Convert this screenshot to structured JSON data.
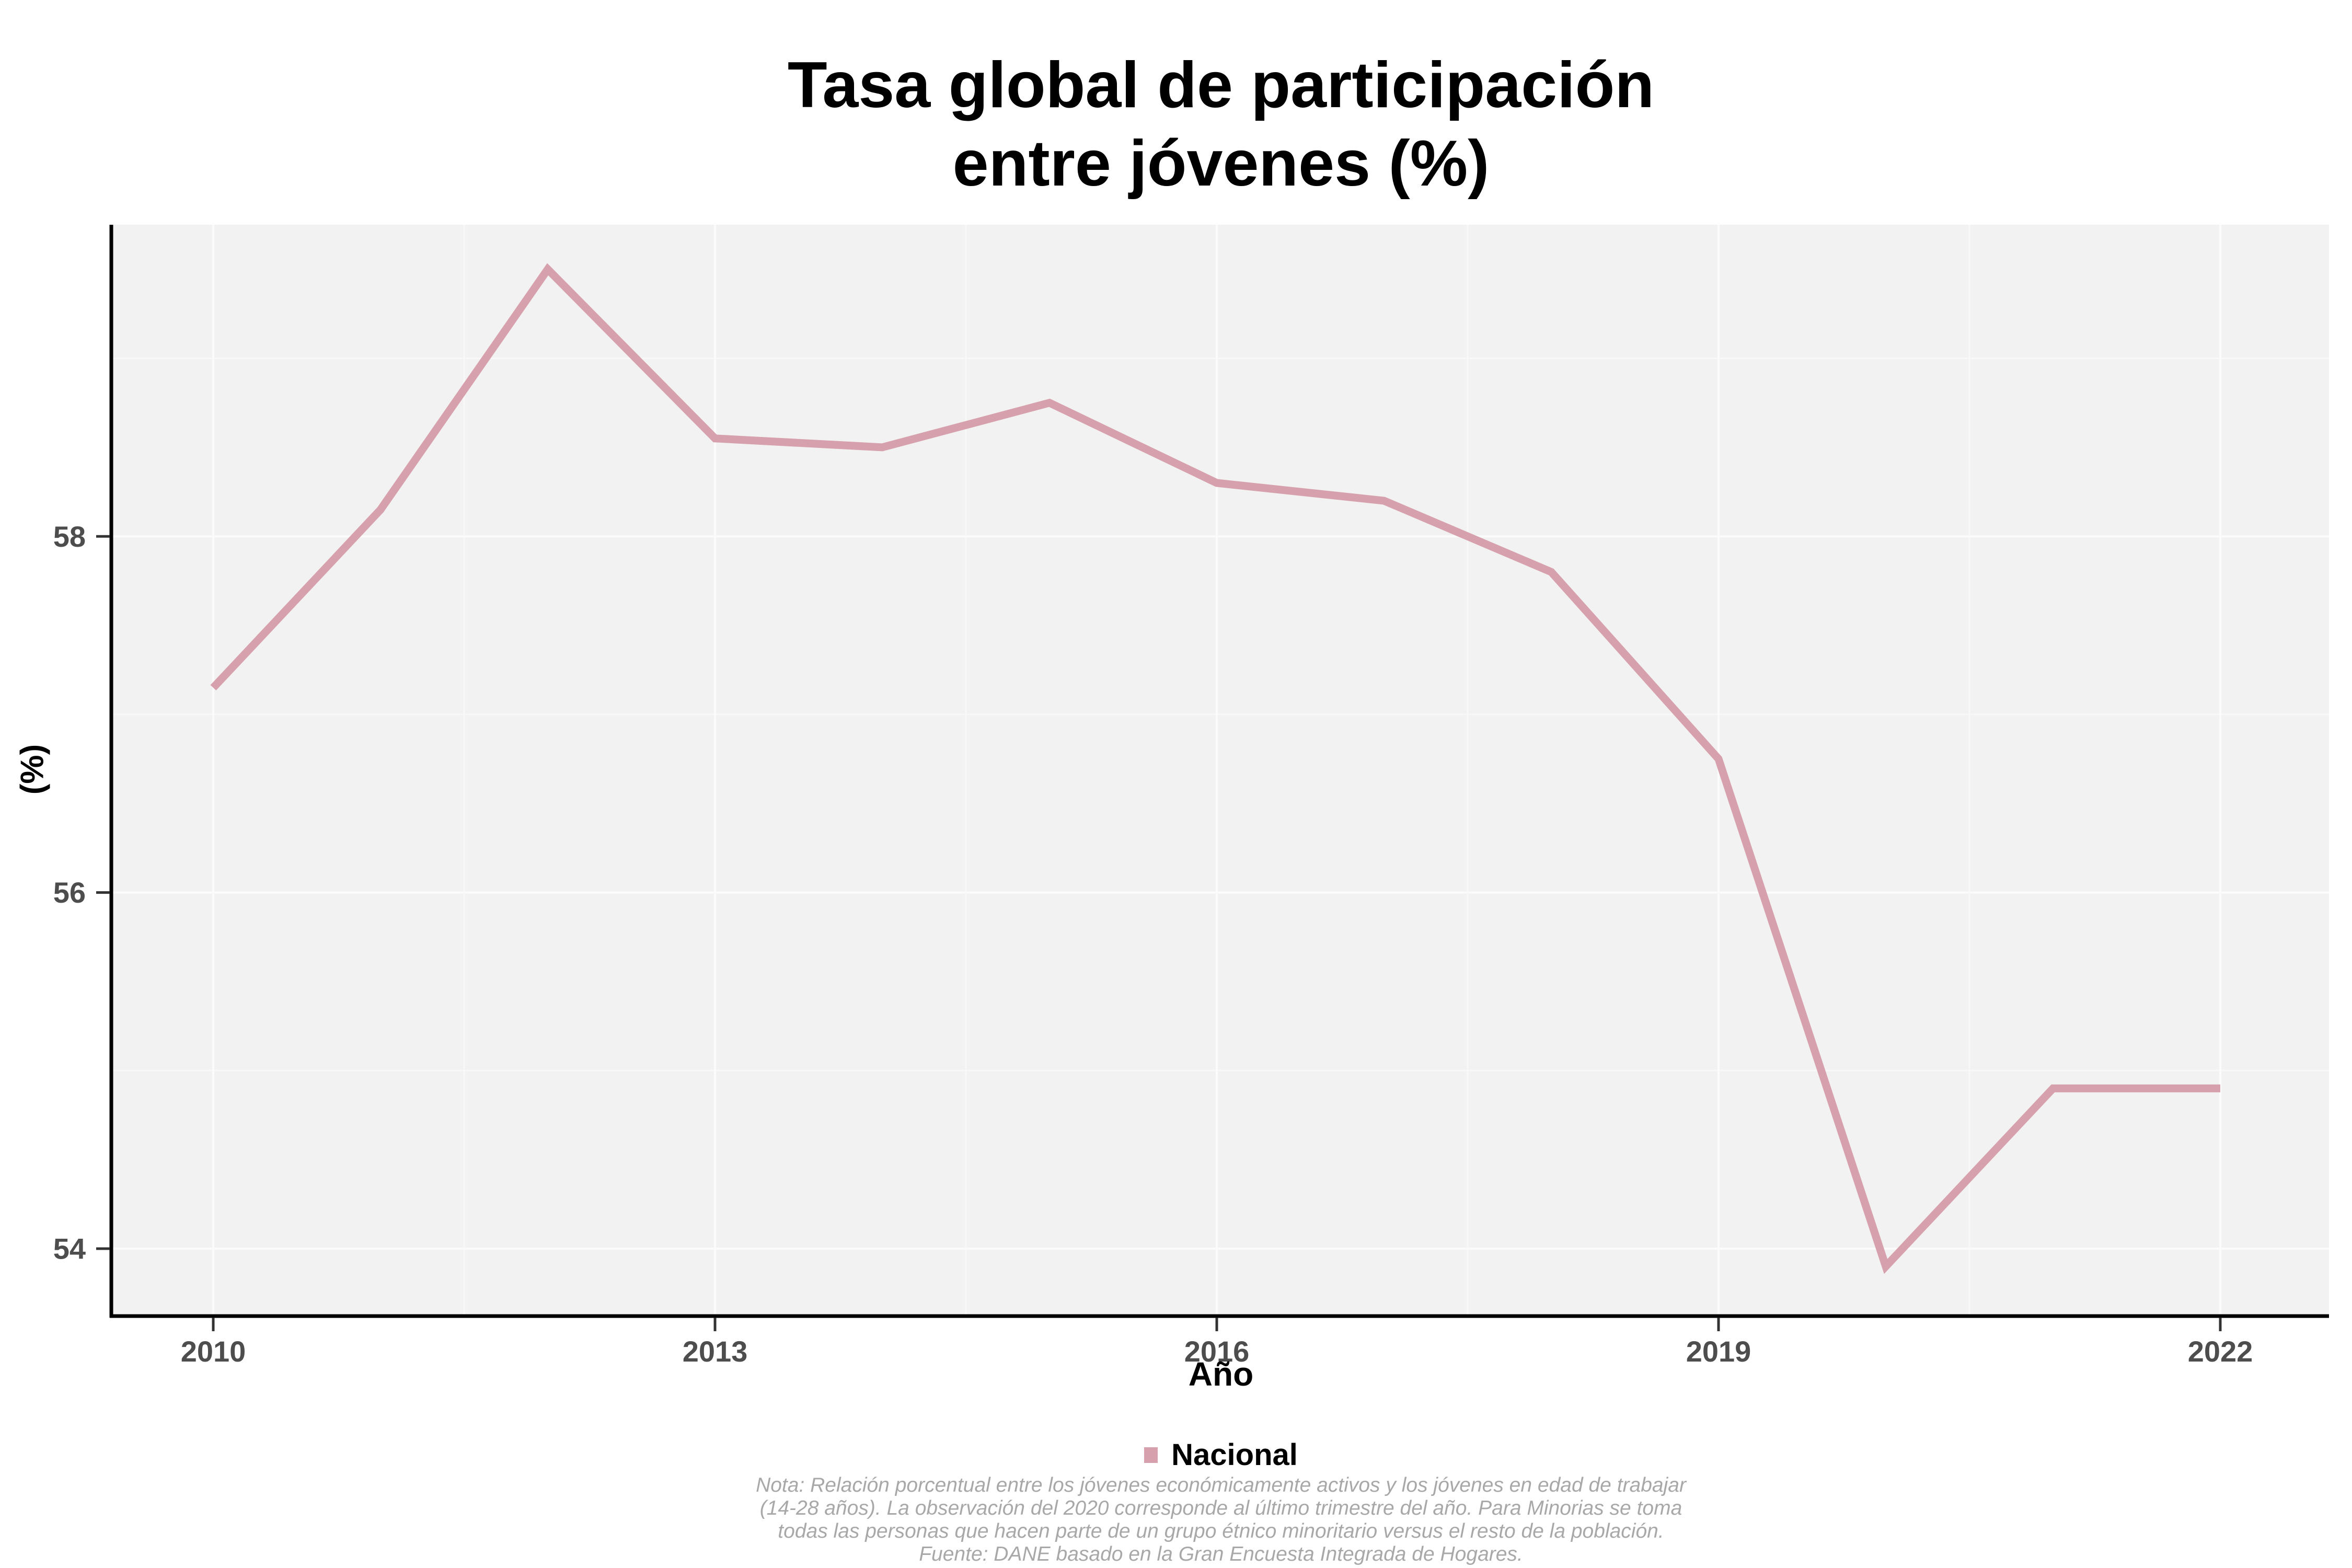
{
  "title": {
    "line1": "Tasa global de participación",
    "line2": "entre jóvenes (%)"
  },
  "axes": {
    "x_label": "Año",
    "y_label": "(%)"
  },
  "legend": {
    "label": "Nacional"
  },
  "note": {
    "line1": "Nota: Relación porcentual entre los jóvenes económicamente activos y los jóvenes en edad de trabajar",
    "line2": "(14-28 años). La observación del 2020 corresponde al último trimestre del año. Para Minorias se toma",
    "line3": "todas las personas que hacen parte de un grupo étnico minoritario versus el resto de la población.",
    "line4": "Fuente: DANE basado en la Gran Encuesta Integrada de Hogares."
  },
  "colors": {
    "line": "#d6a0ac",
    "panel_bg": "#f2f2f2",
    "grid_major": "#fbfbfb",
    "grid_minor": "#f8f8f8",
    "tick_text": "#4d4d4d",
    "tick_mark": "#333333",
    "axis_line": "#000000",
    "note_text": "#a8a8a8"
  },
  "chart_data": {
    "type": "line",
    "title": "Tasa global de participación entre jóvenes (%)",
    "xlabel": "Año",
    "ylabel": "(%)",
    "x": [
      2010,
      2011,
      2012,
      2013,
      2014,
      2015,
      2016,
      2017,
      2018,
      2019,
      2020,
      2021,
      2022
    ],
    "series": [
      {
        "name": "Nacional",
        "color": "#d6a0ac",
        "values": [
          57.15,
          58.15,
          59.5,
          58.55,
          58.5,
          58.75,
          58.3,
          58.2,
          57.8,
          56.75,
          53.9,
          54.9,
          54.9
        ]
      }
    ],
    "x_ticks": [
      2010,
      2013,
      2016,
      2019,
      2022
    ],
    "y_ticks": [
      54,
      56,
      58
    ],
    "x_minor_ticks": [
      2011.5,
      2014.5,
      2017.5,
      2020.5
    ],
    "y_minor_ticks": [
      55,
      57,
      59
    ],
    "xlim": [
      2009.4,
      2022.65
    ],
    "ylim": [
      53.63,
      59.75
    ],
    "grid": true,
    "legend_position": "bottom",
    "annotations": []
  }
}
